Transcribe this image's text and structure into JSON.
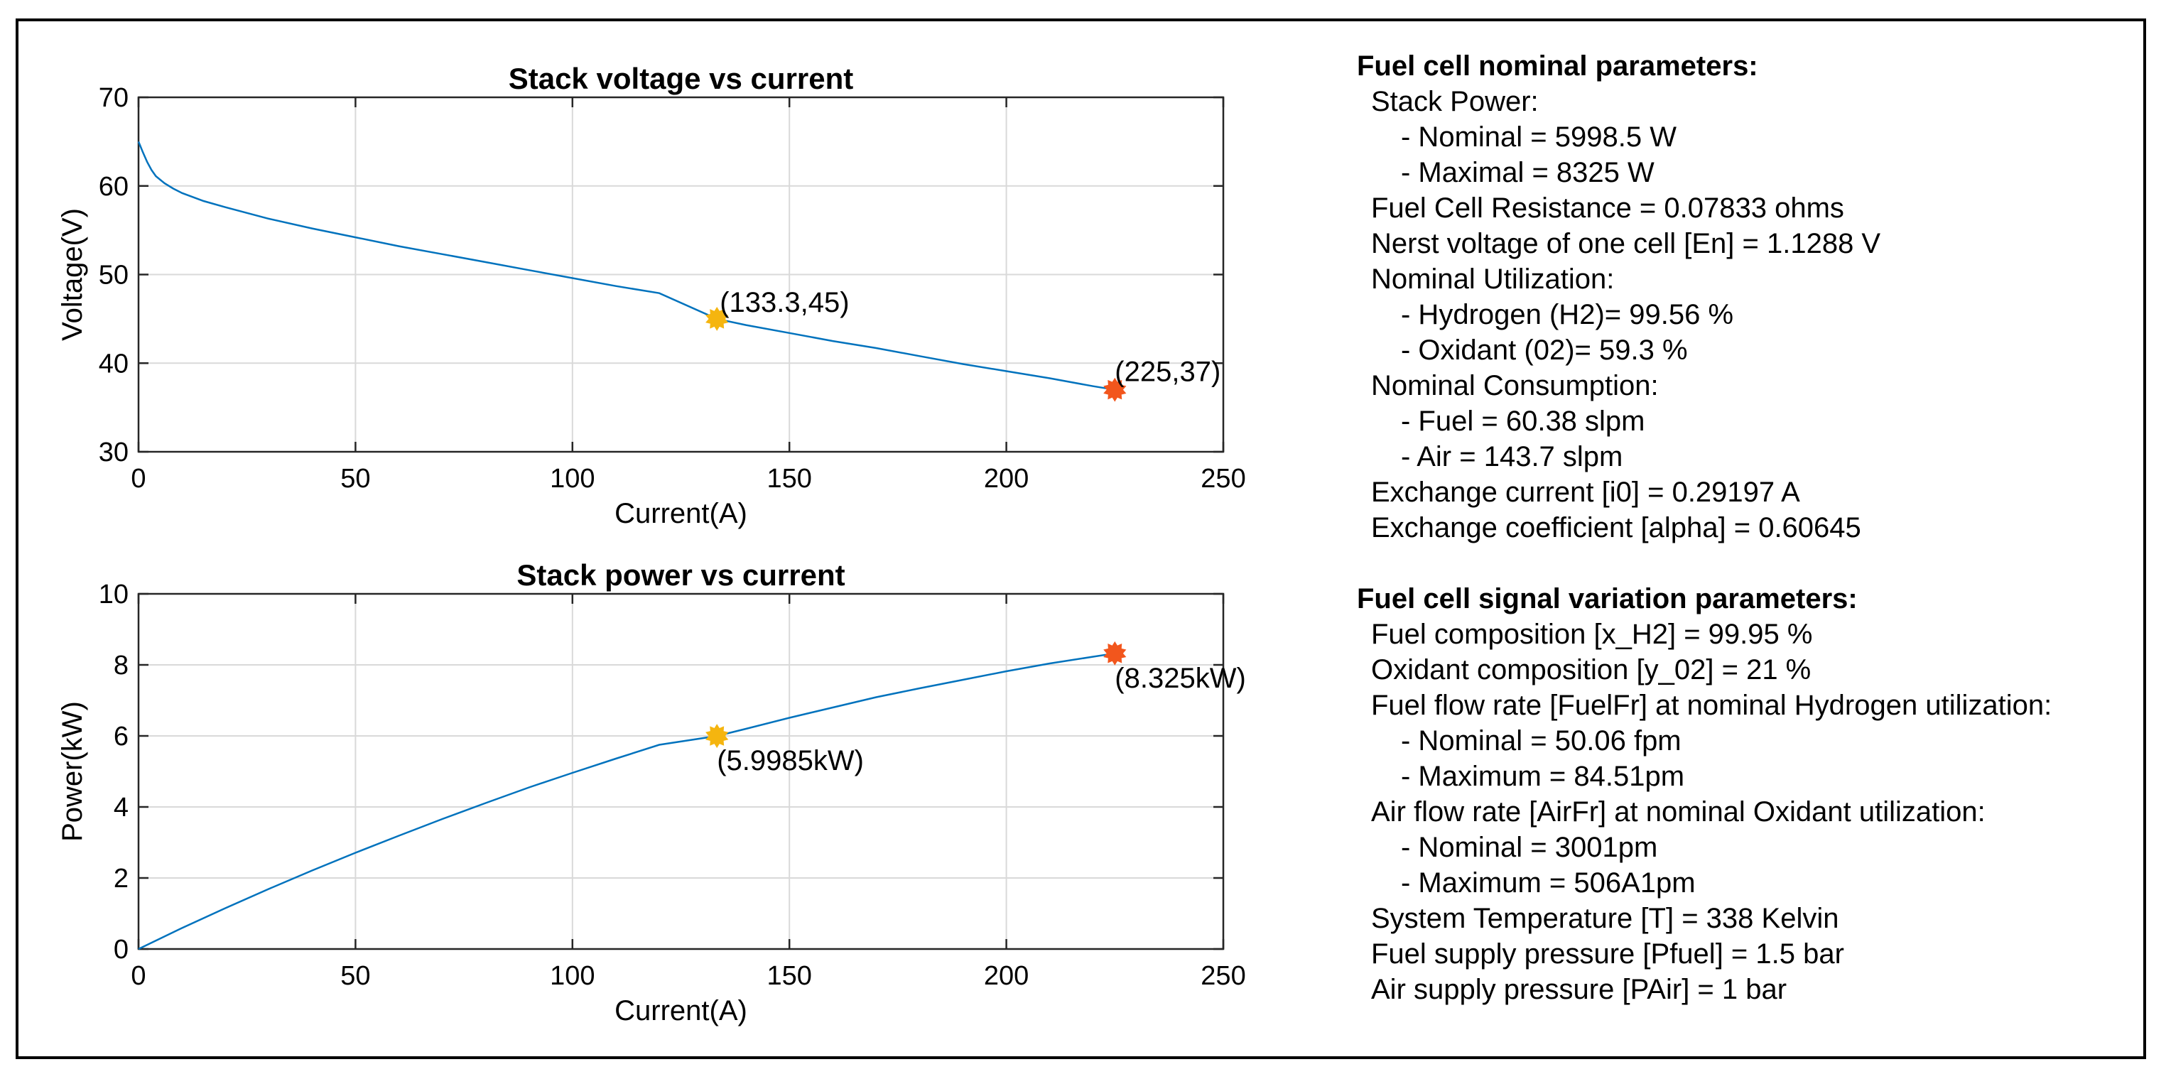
{
  "colors": {
    "line": "#0072BD",
    "nominal_marker": "#F5B50F",
    "max_marker": "#F2561D",
    "grid": "#d9d9d9"
  },
  "chart_data": [
    {
      "type": "line",
      "title": "Stack voltage vs current",
      "xlabel": "Current(A)",
      "ylabel": "Voltage(V)",
      "xlim": [
        0,
        250
      ],
      "ylim": [
        30,
        70
      ],
      "xticks": [
        0,
        50,
        100,
        150,
        200,
        250
      ],
      "yticks": [
        30,
        40,
        50,
        60,
        70
      ],
      "grid": true,
      "series": [
        {
          "name": "Stack voltage",
          "x": [
            0,
            1,
            2,
            3,
            4,
            6,
            8,
            10,
            15,
            20,
            30,
            40,
            50,
            60,
            70,
            80,
            90,
            100,
            110,
            120,
            133.3,
            140,
            150,
            160,
            170,
            180,
            190,
            200,
            210,
            220,
            225
          ],
          "y": [
            65.0,
            63.8,
            62.7,
            61.8,
            61.1,
            60.3,
            59.7,
            59.2,
            58.3,
            57.6,
            56.3,
            55.2,
            54.2,
            53.2,
            52.3,
            51.4,
            50.5,
            49.6,
            48.7,
            47.9,
            45.0,
            44.3,
            43.4,
            42.5,
            41.7,
            40.8,
            39.9,
            39.1,
            38.3,
            37.4,
            37.0
          ]
        }
      ],
      "points": [
        {
          "name": "nominal",
          "x": 133.3,
          "y": 45,
          "label": "(133.3,45)"
        },
        {
          "name": "maximum",
          "x": 225,
          "y": 37,
          "label": "(225,37)"
        }
      ]
    },
    {
      "type": "line",
      "title": "Stack power vs current",
      "xlabel": "Current(A)",
      "ylabel": "Power(kW)",
      "xlim": [
        0,
        250
      ],
      "ylim": [
        0,
        10
      ],
      "xticks": [
        0,
        50,
        100,
        150,
        200,
        250
      ],
      "yticks": [
        0,
        2,
        4,
        6,
        8,
        10
      ],
      "grid": true,
      "series": [
        {
          "name": "Stack power",
          "x": [
            0,
            10,
            20,
            30,
            40,
            50,
            60,
            70,
            80,
            90,
            100,
            110,
            120,
            133.3,
            140,
            150,
            160,
            170,
            180,
            190,
            200,
            210,
            220,
            225
          ],
          "y": [
            0,
            0.59,
            1.15,
            1.69,
            2.21,
            2.71,
            3.19,
            3.66,
            4.11,
            4.55,
            4.96,
            5.36,
            5.75,
            5.9985,
            6.2,
            6.51,
            6.8,
            7.09,
            7.34,
            7.58,
            7.82,
            8.04,
            8.23,
            8.325
          ]
        }
      ],
      "points": [
        {
          "name": "nominal",
          "x": 133.3,
          "y": 5.9985,
          "label": "(5.9985kW)"
        },
        {
          "name": "maximum",
          "x": 225,
          "y": 8.325,
          "label": "(8.325kW)"
        }
      ]
    }
  ],
  "params": {
    "nominal": {
      "title": "Fuel cell nominal parameters:",
      "stack_power": "Stack Power:",
      "power_nominal": "- Nominal = 5998.5 W",
      "power_max": "- Maximal = 8325 W",
      "resistance": "Fuel Cell Resistance = 0.07833 ohms",
      "nernst": "Nerst voltage of one cell [En] = 1.1288 V",
      "utilization": "Nominal Utilization:",
      "util_h2": "- Hydrogen (H2)= 99.56 %",
      "util_o2": "- Oxidant (02)= 59.3 %",
      "consumption": "Nominal Consumption:",
      "cons_fuel": "- Fuel = 60.38 slpm",
      "cons_air": "- Air = 143.7 slpm",
      "exchange_current": "Exchange current [i0] = 0.29197 A",
      "exchange_coeff": "Exchange coefficient [alpha] = 0.60645"
    },
    "variation": {
      "title": "Fuel cell signal variation parameters:",
      "fuel_comp": "Fuel composition [x_H2] = 99.95 %",
      "ox_comp": "Oxidant composition [y_02] = 21 %",
      "fuel_flow": "Fuel flow rate [FuelFr] at nominal Hydrogen utilization:",
      "fuel_flow_nom": "- Nominal = 50.06 fpm",
      "fuel_flow_max": "- Maximum = 84.51pm",
      "air_flow": "Air flow rate [AirFr] at nominal Oxidant utilization:",
      "air_flow_nom": "- Nominal = 3001pm",
      "air_flow_max": "- Maximum = 506A1pm",
      "temperature": "System Temperature [T] = 338 Kelvin",
      "fuel_pressure": "Fuel supply pressure [Pfuel] = 1.5 bar",
      "air_pressure": "Air supply pressure [PAir] = 1 bar"
    }
  }
}
